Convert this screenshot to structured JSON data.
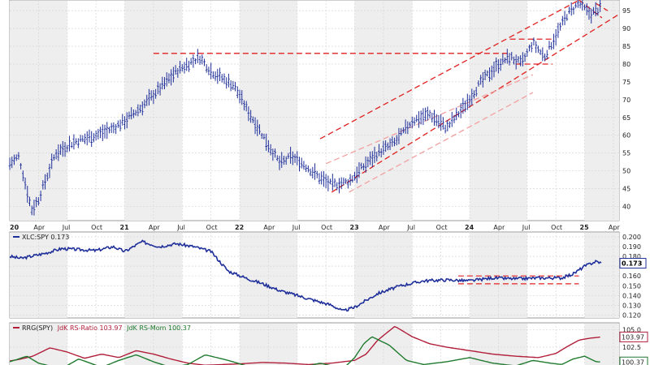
{
  "chart_data": [
    {
      "type": "line",
      "panel": "price",
      "style": "ohlc-bars",
      "series_color": "#1f2f9a",
      "ylim": [
        36,
        98
      ],
      "y_ticks": [
        40,
        45,
        50,
        55,
        60,
        65,
        70,
        75,
        80,
        85,
        90,
        95
      ],
      "x_ticks": [
        "20",
        "Apr",
        "Jul",
        "Oct",
        "21",
        "Apr",
        "Jul",
        "Oct",
        "22",
        "Apr",
        "Jul",
        "Oct",
        "23",
        "Apr",
        "Jul",
        "Oct",
        "24",
        "Apr",
        "Jul",
        "Oct",
        "25",
        "Apr"
      ],
      "x_tick_years": [
        "20",
        "21",
        "22",
        "23",
        "24",
        "25"
      ],
      "x": [
        2020.0,
        2020.08,
        2020.19,
        2020.25,
        2020.4,
        2020.55,
        2020.75,
        2020.9,
        2021.0,
        2021.15,
        2021.3,
        2021.45,
        2021.55,
        2021.65,
        2021.75,
        2021.85,
        2021.95,
        2022.05,
        2022.2,
        2022.35,
        2022.45,
        2022.55,
        2022.7,
        2022.8,
        2022.95,
        2023.1,
        2023.2,
        2023.35,
        2023.5,
        2023.65,
        2023.8,
        2023.95,
        2024.1,
        2024.25,
        2024.35,
        2024.45,
        2024.55,
        2024.65,
        2024.75,
        2024.85,
        2024.95,
        2025.05,
        2025.15
      ],
      "values": [
        52,
        54,
        39,
        42,
        55,
        58,
        60,
        62,
        64,
        68,
        73,
        78,
        80,
        82,
        78,
        76,
        74,
        68,
        60,
        52,
        54,
        52,
        48,
        46,
        47,
        52,
        55,
        58,
        64,
        66,
        62,
        68,
        75,
        80,
        82,
        80,
        86,
        82,
        88,
        94,
        97,
        94,
        96
      ],
      "reference_lines": [
        {
          "kind": "horizontal",
          "y": 83,
          "x_from": 2021.25,
          "x_to": 2024.35,
          "color": "#e02020"
        },
        {
          "kind": "trend",
          "from": [
            2022.7,
            59
          ],
          "to": [
            2025.3,
            104
          ],
          "color": "#e02020"
        },
        {
          "kind": "trend",
          "from": [
            2022.8,
            44
          ],
          "to": [
            2025.3,
            94
          ],
          "color": "#e02020"
        },
        {
          "kind": "trend",
          "from": [
            2022.75,
            52
          ],
          "to": [
            2024.55,
            77
          ],
          "color": "#f2a0a0"
        },
        {
          "kind": "trend",
          "from": [
            2022.95,
            44
          ],
          "to": [
            2024.55,
            72
          ],
          "color": "#f2a0a0"
        },
        {
          "kind": "horizontal",
          "y": 87,
          "x_from": 2024.35,
          "x_to": 2024.72,
          "color": "#e02020"
        },
        {
          "kind": "horizontal",
          "y": 80,
          "x_from": 2024.4,
          "x_to": 2024.72,
          "color": "#e02020"
        },
        {
          "kind": "trend",
          "from": [
            2024.95,
            98
          ],
          "to": [
            2025.15,
            93
          ],
          "color": "#e02020"
        },
        {
          "kind": "trend",
          "from": [
            2025.1,
            97
          ],
          "to": [
            2025.2,
            95
          ],
          "color": "#e02020"
        }
      ]
    },
    {
      "type": "line",
      "panel": "ratio",
      "legend": "XLC:SPY 0.173",
      "last_value": "0.173",
      "series_color": "#1f2f9a",
      "ylim": [
        0.117,
        0.205
      ],
      "y_ticks": [
        0.12,
        0.13,
        0.14,
        0.15,
        0.16,
        0.17,
        0.18,
        0.19,
        0.2
      ],
      "y_tick_labels": [
        "0.120",
        "0.130",
        "0.140",
        "0.150",
        "0.160",
        "0.170",
        "0.180",
        "0.190",
        "0.200"
      ],
      "x": [
        2020.0,
        2020.1,
        2020.3,
        2020.45,
        2020.6,
        2020.75,
        2020.9,
        2021.0,
        2021.15,
        2021.3,
        2021.45,
        2021.6,
        2021.75,
        2021.9,
        2022.05,
        2022.2,
        2022.35,
        2022.5,
        2022.65,
        2022.8,
        2022.9,
        2023.0,
        2023.2,
        2023.4,
        2023.6,
        2023.8,
        2024.0,
        2024.2,
        2024.4,
        2024.6,
        2024.8,
        2024.9,
        2025.0,
        2025.1,
        2025.15
      ],
      "values": [
        0.18,
        0.178,
        0.183,
        0.188,
        0.187,
        0.186,
        0.19,
        0.185,
        0.195,
        0.19,
        0.193,
        0.19,
        0.185,
        0.165,
        0.158,
        0.152,
        0.145,
        0.14,
        0.135,
        0.13,
        0.124,
        0.128,
        0.142,
        0.15,
        0.155,
        0.156,
        0.155,
        0.158,
        0.157,
        0.158,
        0.158,
        0.162,
        0.17,
        0.175,
        0.173
      ],
      "reference_lines": [
        {
          "kind": "horizontal",
          "y": 0.16,
          "x_from": 2023.9,
          "x_to": 2024.95,
          "color": "#e02020"
        },
        {
          "kind": "horizontal",
          "y": 0.152,
          "x_from": 2023.9,
          "x_to": 2024.95,
          "color": "#e02020"
        }
      ]
    },
    {
      "type": "line",
      "panel": "rrg",
      "ylim": [
        99,
        106
      ],
      "y_ticks": [
        102.5,
        105.0
      ],
      "y_tick_labels": [
        "102.5",
        "105.0"
      ],
      "series": [
        {
          "name": "JdK RS-Ratio",
          "color": "#b01e3a",
          "last_value": "103.97",
          "x": [
            2020.0,
            2020.1,
            2020.2,
            2020.35,
            2020.5,
            2020.65,
            2020.8,
            2020.95,
            2021.1,
            2021.25,
            2021.4,
            2021.55,
            2021.7,
            2021.85,
            2022.0,
            2022.2,
            2022.4,
            2022.6,
            2022.8,
            2023.0,
            2023.1,
            2023.2,
            2023.35,
            2023.5,
            2023.65,
            2023.8,
            2024.0,
            2024.2,
            2024.4,
            2024.6,
            2024.75,
            2024.85,
            2024.95,
            2025.05,
            2025.15
          ],
          "values": [
            100.5,
            100.8,
            101.2,
            102.4,
            101.8,
            100.9,
            101.5,
            101.0,
            102.0,
            101.5,
            100.8,
            100.2,
            99.9,
            100.0,
            100.1,
            100.3,
            100.2,
            100.0,
            100.2,
            100.6,
            101.5,
            103.5,
            105.5,
            104.0,
            103.0,
            102.5,
            102.0,
            101.5,
            101.2,
            101.0,
            101.6,
            102.6,
            103.5,
            103.8,
            103.97
          ]
        },
        {
          "name": "JdK RS-Mom",
          "color": "#1f7a2e",
          "last_value": "100.37",
          "x": [
            2020.0,
            2020.15,
            2020.25,
            2020.45,
            2020.6,
            2020.8,
            2020.95,
            2021.1,
            2021.25,
            2021.4,
            2021.55,
            2021.7,
            2021.9,
            2022.1,
            2022.3,
            2022.5,
            2022.7,
            2022.9,
            2023.0,
            2023.08,
            2023.15,
            2023.3,
            2023.45,
            2023.6,
            2023.8,
            2024.0,
            2024.2,
            2024.4,
            2024.55,
            2024.7,
            2024.8,
            2024.9,
            2025.0,
            2025.1,
            2025.15
          ],
          "values": [
            100.4,
            101.2,
            100.2,
            99.4,
            100.8,
            99.6,
            100.6,
            101.4,
            100.4,
            99.6,
            100.0,
            101.4,
            100.6,
            99.6,
            99.2,
            99.4,
            100.2,
            99.4,
            101.0,
            103.0,
            104.0,
            102.8,
            100.6,
            100.0,
            100.4,
            101.0,
            100.2,
            99.8,
            100.6,
            100.2,
            100.0,
            100.8,
            101.2,
            100.4,
            100.37
          ]
        }
      ]
    }
  ],
  "panels": {
    "ratio": {
      "legend": "XLC:SPY 0.173"
    },
    "rrg": {
      "legend_prefix": "RRG(SPY)",
      "ratio_label": "JdK RS-Ratio 103.97",
      "mom_label": "JdK RS-Mom 100.37"
    }
  }
}
